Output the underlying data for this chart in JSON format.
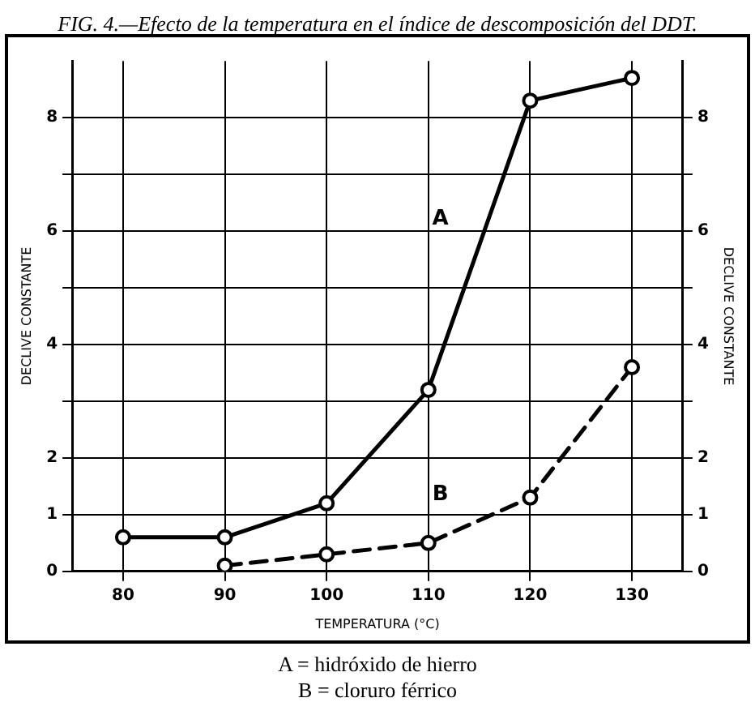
{
  "chart_data": {
    "type": "line",
    "title": "FIG. 4.—Efecto de la temperatura en el índice de descomposición del DDT.",
    "xlabel": "TEMPERATURA (°C)",
    "ylabel": "DECLIVE CONSTANTE",
    "y2label": "DECLIVE CONSTANTE",
    "x": [
      80,
      90,
      100,
      110,
      120,
      130
    ],
    "series": [
      {
        "name": "A",
        "color": "#000000",
        "line_style": "solid",
        "values": [
          0.6,
          0.6,
          1.2,
          3.2,
          8.3,
          8.7
        ]
      },
      {
        "name": "B",
        "color": "#000000",
        "line_style": "dashed",
        "values": [
          null,
          0.1,
          0.3,
          0.5,
          1.3,
          3.6
        ]
      }
    ],
    "xlim": [
      75,
      135
    ],
    "xticks": [
      80,
      90,
      100,
      110,
      120,
      130
    ],
    "ylim": [
      0,
      9
    ],
    "yticks": [
      0,
      1,
      2,
      {
        "value": 3,
        "label": null
      },
      4,
      {
        "value": 5,
        "label": null
      },
      6,
      {
        "value": 7,
        "label": null
      },
      8
    ],
    "y2lim": [
      0,
      9
    ],
    "y2ticks": [
      0,
      1,
      2,
      {
        "value": 3,
        "label": null
      },
      4,
      {
        "value": 5,
        "label": null
      },
      6,
      {
        "value": 7,
        "label": null
      },
      8
    ],
    "grid": true,
    "legend": false,
    "marker": "circle",
    "annotations": [
      "A = hidróxido de hierro",
      "B = cloruro férrico"
    ]
  }
}
